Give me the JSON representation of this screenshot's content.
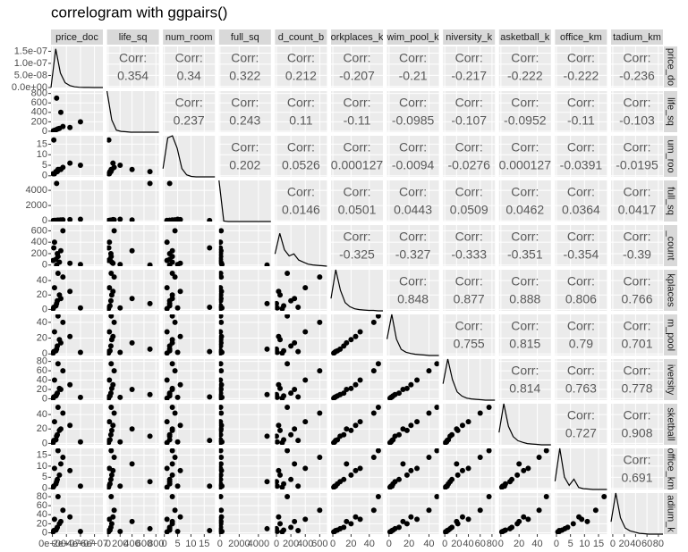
{
  "chart_data": {
    "type": "correlogram",
    "title": "correlogram with ggpairs()",
    "corr_label": "Corr:",
    "panel_color": "#ebebeb",
    "strip_color": "#d9d9d9",
    "point_color": "#000000",
    "variables": [
      {
        "top_label": "price_doc",
        "right_label": "price_do",
        "lim": [
          -2000000,
          72000000
        ],
        "ticks": [
          {
            "value": 0,
            "label": "0e+00"
          },
          {
            "value": 20000000,
            "label": "2e+07"
          },
          {
            "value": 40000000,
            "label": "4e+07"
          },
          {
            "value": 60000000,
            "label": "6e+07"
          }
        ],
        "density_ylim": [
          0,
          1.7e-07
        ],
        "density_ticks": [
          {
            "value": 0,
            "label": "0.0e+00"
          },
          {
            "value": 5e-08,
            "label": "5.0e-08"
          },
          {
            "value": 1e-07,
            "label": "1.0e-07"
          },
          {
            "value": 1.5e-07,
            "label": "1.5e-07"
          }
        ],
        "density": [
          0,
          1.6e-07,
          6e-08,
          2e-08,
          8e-09,
          3e-09,
          1e-09,
          5e-10,
          2e-10,
          1e-10,
          0,
          0
        ]
      },
      {
        "top_label": "life_sq",
        "right_label": "life_sq",
        "lim": [
          -20,
          850
        ],
        "ticks": [
          0,
          200,
          400,
          600,
          800
        ],
        "density_ylim": [
          0,
          1
        ],
        "density": [
          1,
          0.3,
          0.05,
          0.02,
          0.01,
          0,
          0,
          0,
          0,
          0,
          0,
          0
        ]
      },
      {
        "top_label": "num_room",
        "right_label": "um_roo",
        "lim": [
          -0.5,
          19
        ],
        "ticks": [
          0,
          5,
          10,
          15
        ],
        "density_ylim": [
          0,
          1
        ],
        "density": [
          0.2,
          0.95,
          1,
          0.7,
          0.2,
          0.05,
          0.01,
          0,
          0,
          0,
          0,
          0
        ]
      },
      {
        "top_label": "full_sq",
        "right_label": "full_sq",
        "lim": [
          -100,
          5300
        ],
        "ticks": [
          0,
          2000,
          4000
        ],
        "density_ylim": [
          0,
          1
        ],
        "density": [
          1,
          0.01,
          0,
          0,
          0,
          0,
          0,
          0,
          0,
          0,
          0,
          0
        ]
      },
      {
        "top_label": "d_count_b",
        "right_label": "_count",
        "lim": [
          -20,
          700
        ],
        "ticks": [
          0,
          200,
          400,
          600
        ],
        "density_ylim": [
          0,
          1
        ],
        "density": [
          0.3,
          0.8,
          0.4,
          0.25,
          0.3,
          0.15,
          0.1,
          0.05,
          0.03,
          0.02,
          0.01,
          0
        ]
      },
      {
        "top_label": "orkplaces_k",
        "right_label": "kplaces",
        "lim": [
          -2,
          55
        ],
        "ticks": [
          0,
          20,
          40
        ],
        "density_ylim": [
          0,
          1
        ],
        "density": [
          0.3,
          1,
          0.5,
          0.2,
          0.1,
          0.05,
          0.03,
          0.02,
          0.01,
          0.01,
          0,
          0
        ]
      },
      {
        "top_label": "wim_pool_k",
        "right_label": "m_pool",
        "lim": [
          -2,
          50
        ],
        "ticks": [
          0,
          20,
          40
        ],
        "density_ylim": [
          0,
          1
        ],
        "density": [
          0.4,
          1,
          0.4,
          0.15,
          0.08,
          0.05,
          0.03,
          0.02,
          0.01,
          0,
          0,
          0
        ]
      },
      {
        "top_label": "niversity_k",
        "right_label": "iversity",
        "lim": [
          -3,
          85
        ],
        "ticks": [
          0,
          20,
          40,
          60,
          80
        ],
        "density_ylim": [
          0,
          1
        ],
        "density": [
          0.4,
          1,
          0.5,
          0.2,
          0.1,
          0.05,
          0.03,
          0.02,
          0.01,
          0,
          0,
          0
        ]
      },
      {
        "top_label": "asketball_k",
        "right_label": "sketball",
        "lim": [
          -2,
          55
        ],
        "ticks": [
          0,
          20,
          40
        ],
        "density_ylim": [
          0,
          1
        ],
        "density": [
          0.3,
          1,
          0.45,
          0.2,
          0.1,
          0.06,
          0.03,
          0.02,
          0.01,
          0,
          0,
          0
        ]
      },
      {
        "top_label": "office_km",
        "right_label": "office_km",
        "lim": [
          -0.5,
          18
        ],
        "ticks": [
          0,
          5,
          10,
          15
        ],
        "density_ylim": [
          0,
          1
        ],
        "density": [
          0.2,
          1,
          0.3,
          0.1,
          0.25,
          0.05,
          0.02,
          0.01,
          0,
          0,
          0,
          0
        ]
      },
      {
        "top_label": "tadium_km",
        "right_label": "adium_k",
        "lim": [
          -3,
          88
        ],
        "ticks": [
          0,
          20,
          40,
          60,
          80
        ],
        "density_ylim": [
          0,
          1
        ],
        "density": [
          0.3,
          1,
          0.4,
          0.15,
          0.08,
          0.05,
          0.02,
          0.01,
          0,
          0,
          0,
          0
        ]
      }
    ],
    "correlations": [
      [
        0.354,
        0.34,
        0.322,
        0.212,
        -0.207,
        -0.21,
        -0.217,
        -0.222,
        -0.222,
        -0.236
      ],
      [
        0.237,
        0.243,
        0.11,
        -0.11,
        -0.0985,
        -0.107,
        -0.0952,
        -0.11,
        -0.103
      ],
      [
        0.202,
        0.0526,
        0.000127,
        -0.0094,
        -0.0276,
        0.000127,
        -0.0391,
        -0.0195
      ],
      [
        0.0146,
        0.0501,
        0.0443,
        0.0509,
        0.0462,
        0.0364,
        0.0417
      ],
      [
        -0.325,
        -0.327,
        -0.333,
        -0.351,
        -0.354,
        -0.39
      ],
      [
        0.848,
        0.877,
        0.888,
        0.806,
        0.766
      ],
      [
        0.755,
        0.815,
        0.79,
        0.701
      ],
      [
        0.814,
        0.763,
        0.778
      ],
      [
        0.727,
        0.908
      ],
      [
        0.691
      ]
    ],
    "observations": [
      [
        5000000,
        30,
        2,
        50,
        100,
        5,
        4,
        6,
        5,
        2,
        6
      ],
      [
        7000000,
        45,
        2,
        60,
        200,
        12,
        10,
        12,
        12,
        4,
        12
      ],
      [
        10000000,
        60,
        3,
        80,
        50,
        20,
        18,
        22,
        18,
        6,
        20
      ],
      [
        3000000,
        20,
        1,
        40,
        400,
        30,
        28,
        40,
        30,
        9,
        30
      ],
      [
        15000000,
        100,
        4,
        120,
        600,
        45,
        40,
        60,
        42,
        14,
        50
      ],
      [
        40000000,
        200,
        5,
        200,
        10,
        2,
        2,
        3,
        2,
        1,
        3
      ],
      [
        6000000,
        700,
        2,
        4900,
        0,
        8,
        6,
        9,
        10,
        3,
        9
      ],
      [
        2000000,
        10,
        17,
        30,
        300,
        3,
        3,
        4,
        4,
        1,
        5
      ],
      [
        8000000,
        50,
        3,
        70,
        150,
        50,
        48,
        75,
        50,
        17,
        80
      ],
      [
        12000000,
        400,
        3,
        100,
        250,
        15,
        14,
        20,
        20,
        11,
        25
      ],
      [
        25000000,
        80,
        6,
        150,
        30,
        25,
        22,
        30,
        25,
        8,
        35
      ],
      [
        1000000,
        5,
        1,
        20,
        80,
        1,
        1,
        1,
        1,
        0.5,
        2
      ]
    ]
  }
}
